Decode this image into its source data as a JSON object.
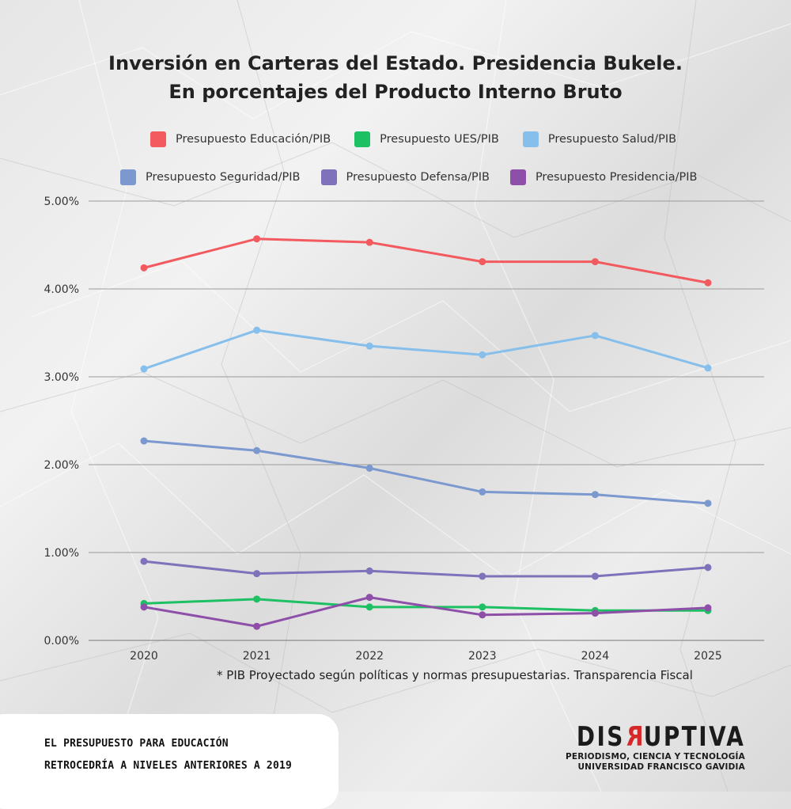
{
  "title": {
    "line1": "Inversión en Carteras del Estado. Presidencia Bukele.",
    "line2": "En porcentajes del Producto Interno Bruto"
  },
  "legend": {
    "row1": [
      {
        "label": "Presupuesto Educación/PIB",
        "color": "#f25a5f"
      },
      {
        "label": "Presupuesto UES/PIB",
        "color": "#1dc063"
      },
      {
        "label": "Presupuesto Salud/PIB",
        "color": "#86bfeb"
      }
    ],
    "row2": [
      {
        "label": "Presupuesto Seguridad/PIB",
        "color": "#7b98cf"
      },
      {
        "label": "Presupuesto Defensa/PIB",
        "color": "#7f72ba"
      },
      {
        "label": "Presupuesto Presidencia/PIB",
        "color": "#8e4fa8"
      }
    ]
  },
  "chart_data": {
    "type": "line",
    "x": [
      "2020",
      "2021",
      "2022",
      "2023",
      "2024",
      "2025"
    ],
    "yticks": [
      "5.00%",
      "4.00%",
      "3.00%",
      "2.00%",
      "1.00%",
      "0.00%"
    ],
    "ylim": [
      0,
      5
    ],
    "grid": true,
    "series": [
      {
        "name": "Presupuesto Educación/PIB",
        "color": "#f25a5f",
        "values": [
          4.24,
          4.57,
          4.53,
          4.31,
          4.31,
          4.07
        ]
      },
      {
        "name": "Presupuesto UES/PIB",
        "color": "#1dc063",
        "values": [
          0.42,
          0.47,
          0.38,
          0.38,
          0.34,
          0.34
        ]
      },
      {
        "name": "Presupuesto Salud/PIB",
        "color": "#86bfeb",
        "values": [
          3.09,
          3.53,
          3.35,
          3.25,
          3.47,
          3.1
        ]
      },
      {
        "name": "Presupuesto Seguridad/PIB",
        "color": "#7b98cf",
        "values": [
          2.27,
          2.16,
          1.96,
          1.69,
          1.66,
          1.56
        ]
      },
      {
        "name": "Presupuesto Defensa/PIB",
        "color": "#7f72ba",
        "values": [
          0.9,
          0.76,
          0.79,
          0.73,
          0.73,
          0.83
        ]
      },
      {
        "name": "Presupuesto Presidencia/PIB",
        "color": "#8e4fa8",
        "values": [
          0.38,
          0.16,
          0.49,
          0.29,
          0.31,
          0.37
        ]
      }
    ]
  },
  "footnote": "* PIB Proyectado según políticas y normas presupuestarias. Transparencia Fiscal",
  "callout": {
    "line1": "EL PRESUPUESTO PARA EDUCACIÓN",
    "line2": "RETROCEDRÍA A NIVELES ANTERIORES A 2019"
  },
  "brand": {
    "name_part1": "DIS",
    "name_mirrored": "R",
    "name_part2": "UPTIVA",
    "tagline": "Periodismo, Ciencia y Tecnología",
    "university": "Universidad Francisco Gavidia"
  }
}
